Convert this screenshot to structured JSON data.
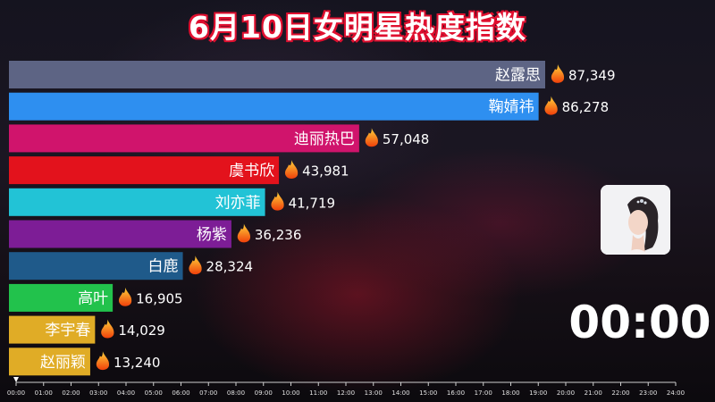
{
  "title": "6月10日女明星热度指数",
  "clock": "00:00",
  "value_icon": "fire-icon",
  "chart_data": {
    "type": "bar",
    "orientation": "horizontal",
    "title": "6月10日女明星热度指数",
    "categories": [
      "赵露思",
      "鞠婧祎",
      "迪丽热巴",
      "虞书欣",
      "刘亦菲",
      "杨紫",
      "白鹿",
      "高叶",
      "李宇春",
      "赵丽颖"
    ],
    "values": [
      87349,
      86278,
      57048,
      43981,
      41719,
      36236,
      28324,
      16905,
      14029,
      13240
    ],
    "value_labels": [
      "87,349",
      "86,278",
      "57,048",
      "43,981",
      "41,719",
      "36,236",
      "28,324",
      "16,905",
      "14,029",
      "13,240"
    ],
    "colors": [
      "#5d6484",
      "#2e8ff0",
      "#d0146c",
      "#e3121c",
      "#22c3d6",
      "#7d1d96",
      "#1f5a8a",
      "#22c24c",
      "#e0ac26",
      "#e0ac26"
    ],
    "timeline_ticks": [
      "00:00",
      "01:00",
      "02:00",
      "03:00",
      "04:00",
      "05:00",
      "06:00",
      "07:00",
      "08:00",
      "09:00",
      "10:00",
      "11:00",
      "12:00",
      "13:00",
      "14:00",
      "15:00",
      "16:00",
      "17:00",
      "18:00",
      "19:00",
      "20:00",
      "21:00",
      "22:00",
      "23:00",
      "24:00"
    ],
    "timeline_position": "00:00",
    "xlim": [
      0,
      87349
    ]
  }
}
